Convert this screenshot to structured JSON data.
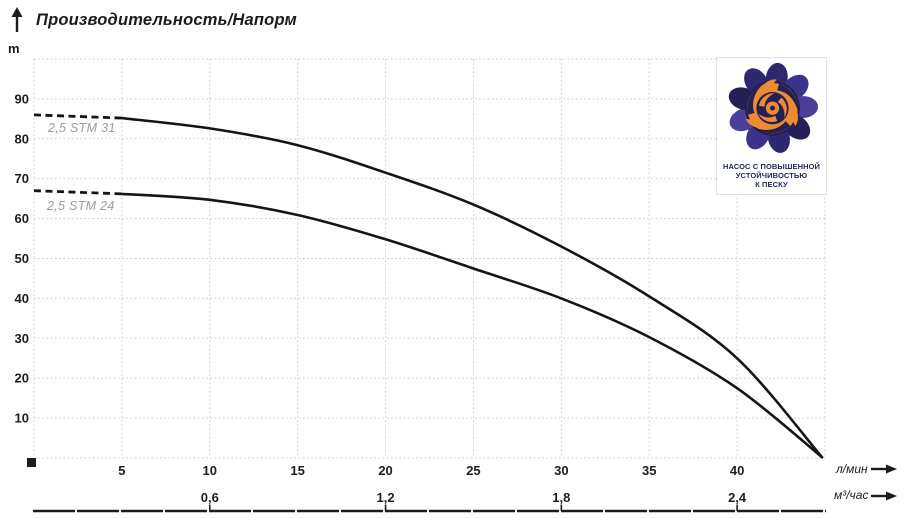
{
  "title": "Производительность/Напорм",
  "y_axis": {
    "unit": "m"
  },
  "x_axis": {
    "primary_unit": "л/мин",
    "secondary_unit": "м³/час"
  },
  "badge": {
    "line1": "НАСОС С ПОВЫШЕННОЙ",
    "line2": "УСТОЙЧИВОСТЬЮ",
    "line3": "К ПЕСКУ"
  },
  "colors": {
    "curve": "#151515",
    "grid": "#cbcbcb",
    "axis": "#1d1d1d",
    "series_label": "#9b9b9b",
    "logo_navy": "#2d2870",
    "logo_navy_dark": "#241f55",
    "logo_navy_mid": "#3b338a",
    "logo_purple": "#4c3f97",
    "logo_orange": "#ee8a30",
    "badge_text": "#1f2a60"
  },
  "chart_data": {
    "type": "line",
    "title": "Производительность/Напорм",
    "ylabel": "m",
    "xlabel_primary": "л/мин",
    "xlabel_secondary": "м³/час",
    "x_range_lmin": [
      0,
      45
    ],
    "y_range_m": [
      0,
      100
    ],
    "grid": "dotted",
    "legend_position": "inline-left",
    "y_ticks": [
      90,
      80,
      70,
      60,
      50,
      40,
      30,
      20,
      10
    ],
    "x_ticks_lmin": [
      5,
      10,
      15,
      20,
      25,
      30,
      35,
      40
    ],
    "x_ticks_m3h": [
      {
        "label": "0,6",
        "at_lmin": 10
      },
      {
        "label": "1,2",
        "at_lmin": 20
      },
      {
        "label": "1,8",
        "at_lmin": 30
      },
      {
        "label": "2,4",
        "at_lmin": 40
      }
    ],
    "series": [
      {
        "name": "2,5 STM 31",
        "dashed_until_lmin": 5,
        "points_lmin_m": [
          [
            0,
            86
          ],
          [
            5,
            85.2
          ],
          [
            10,
            82.6
          ],
          [
            15,
            78.4
          ],
          [
            20,
            71.5
          ],
          [
            25,
            63.5
          ],
          [
            30,
            53
          ],
          [
            35,
            40.5
          ],
          [
            40,
            25
          ],
          [
            44.83,
            0.2
          ]
        ]
      },
      {
        "name": "2,5 STM 24",
        "dashed_until_lmin": 5,
        "points_lmin_m": [
          [
            0,
            67
          ],
          [
            5,
            66.2
          ],
          [
            10,
            64.7
          ],
          [
            15,
            60.9
          ],
          [
            20,
            54.8
          ],
          [
            25,
            47.5
          ],
          [
            30,
            40
          ],
          [
            35,
            30.3
          ],
          [
            40,
            17.5
          ],
          [
            44.83,
            0.2
          ]
        ]
      }
    ]
  }
}
